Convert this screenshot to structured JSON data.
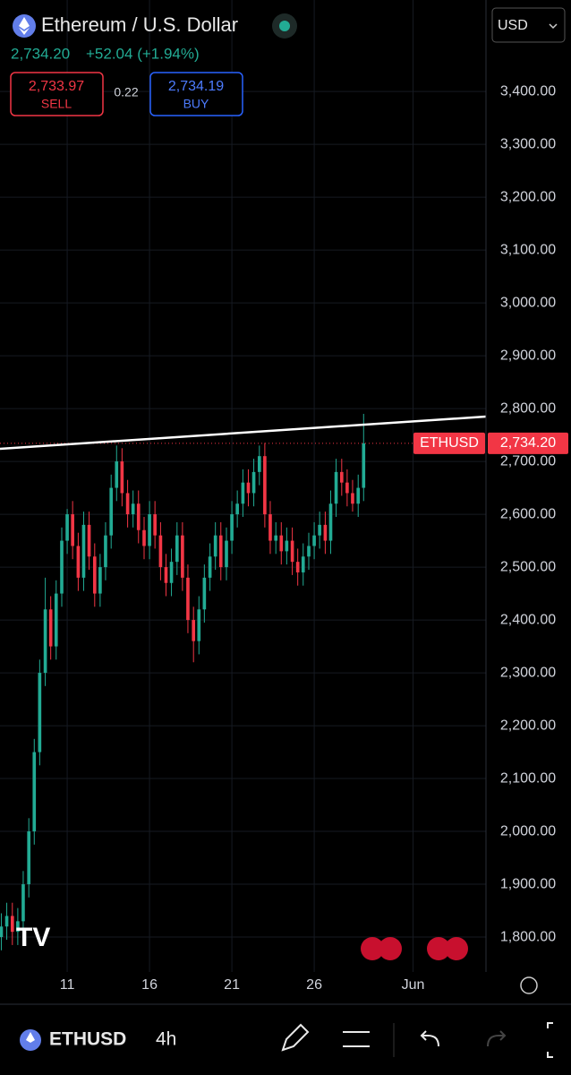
{
  "header": {
    "title": "Ethereum / U.S. Dollar",
    "price": "2,734.20",
    "change": "+52.04 (+1.94%)",
    "sell_price": "2,733.97",
    "sell_label": "SELL",
    "spread": "0.22",
    "buy_price": "2,734.19",
    "buy_label": "BUY",
    "currency": "USD"
  },
  "chart_data": {
    "type": "candlestick",
    "x": [
      7,
      7.33,
      7.67,
      8,
      8.33,
      8.67,
      9,
      9.33,
      9.67,
      10,
      10.33,
      10.67,
      11,
      11.33,
      11.67,
      12,
      12.33,
      12.67,
      13,
      13.33,
      13.67,
      14,
      14.33,
      14.67,
      15,
      15.33,
      15.67,
      16,
      16.33,
      16.67,
      17,
      17.33,
      17.67,
      18,
      18.33,
      18.67,
      19,
      19.33,
      19.67,
      20,
      20.33,
      20.67,
      21,
      21.33,
      21.67,
      22,
      22.33,
      22.67,
      23,
      23.33,
      23.67,
      24,
      24.33,
      24.67,
      25,
      25.33,
      25.67,
      26,
      26.33,
      26.67,
      27,
      27.33,
      27.67,
      28,
      28.33,
      28.67,
      29
    ],
    "open": [
      1800,
      1820,
      1840,
      1810,
      1830,
      1900,
      2000,
      2150,
      2300,
      2420,
      2350,
      2450,
      2550,
      2600,
      2540,
      2480,
      2580,
      2520,
      2450,
      2500,
      2560,
      2650,
      2700,
      2640,
      2600,
      2620,
      2570,
      2540,
      2600,
      2560,
      2500,
      2470,
      2510,
      2560,
      2480,
      2400,
      2360,
      2420,
      2480,
      2520,
      2560,
      2500,
      2550,
      2600,
      2620,
      2660,
      2640,
      2680,
      2710,
      2600,
      2550,
      2560,
      2530,
      2550,
      2510,
      2490,
      2520,
      2540,
      2560,
      2580,
      2550,
      2620,
      2680,
      2660,
      2640,
      2620,
      2650
    ],
    "high": [
      1845,
      1865,
      1865,
      1855,
      1925,
      2025,
      2175,
      2325,
      2480,
      2445,
      2475,
      2575,
      2610,
      2625,
      2565,
      2605,
      2605,
      2545,
      2525,
      2585,
      2675,
      2730,
      2725,
      2665,
      2645,
      2645,
      2595,
      2625,
      2625,
      2585,
      2525,
      2535,
      2585,
      2585,
      2505,
      2425,
      2445,
      2505,
      2545,
      2585,
      2585,
      2575,
      2625,
      2645,
      2685,
      2685,
      2705,
      2730,
      2735,
      2625,
      2585,
      2585,
      2575,
      2575,
      2535,
      2545,
      2565,
      2585,
      2605,
      2605,
      2645,
      2705,
      2705,
      2685,
      2665,
      2675,
      2790
    ],
    "low": [
      1775,
      1795,
      1785,
      1785,
      1805,
      1875,
      1975,
      2125,
      2275,
      2325,
      2325,
      2425,
      2525,
      2515,
      2455,
      2455,
      2495,
      2425,
      2425,
      2475,
      2535,
      2625,
      2615,
      2575,
      2575,
      2545,
      2515,
      2515,
      2535,
      2475,
      2445,
      2445,
      2485,
      2455,
      2375,
      2320,
      2335,
      2395,
      2455,
      2495,
      2475,
      2475,
      2525,
      2575,
      2595,
      2615,
      2615,
      2655,
      2575,
      2525,
      2525,
      2505,
      2505,
      2485,
      2465,
      2465,
      2495,
      2515,
      2535,
      2525,
      2525,
      2595,
      2635,
      2615,
      2605,
      2595,
      2625
    ],
    "close": [
      1820,
      1840,
      1810,
      1830,
      1900,
      2000,
      2150,
      2300,
      2420,
      2350,
      2450,
      2550,
      2600,
      2540,
      2480,
      2580,
      2520,
      2450,
      2500,
      2560,
      2650,
      2700,
      2640,
      2600,
      2620,
      2570,
      2540,
      2600,
      2560,
      2500,
      2470,
      2510,
      2560,
      2480,
      2400,
      2360,
      2420,
      2480,
      2520,
      2560,
      2500,
      2550,
      2600,
      2620,
      2660,
      2640,
      2680,
      2710,
      2600,
      2550,
      2560,
      2530,
      2550,
      2510,
      2490,
      2520,
      2540,
      2560,
      2580,
      2550,
      2620,
      2680,
      2660,
      2640,
      2620,
      2650,
      2734.2
    ],
    "up_color": "#22ab94",
    "down_color": "#f23645",
    "xlim": [
      6.92,
      36.43
    ],
    "ylim": [
      1734,
      3573
    ],
    "xticks": [
      11,
      16,
      21,
      26,
      {
        "value": 32,
        "label": "Jun"
      }
    ],
    "yticks": [
      {
        "value": 1800,
        "label": "1,800.00"
      },
      {
        "value": 1900,
        "label": "1,900.00"
      },
      {
        "value": 2000,
        "label": "2,000.00"
      },
      {
        "value": 2100,
        "label": "2,100.00"
      },
      {
        "value": 2200,
        "label": "2,200.00"
      },
      {
        "value": 2300,
        "label": "2,300.00"
      },
      {
        "value": 2400,
        "label": "2,400.00"
      },
      {
        "value": 2500,
        "label": "2,500.00"
      },
      {
        "value": 2600,
        "label": "2,600.00"
      },
      {
        "value": 2700,
        "label": "2,700.00"
      },
      {
        "value": 2800,
        "label": "2,800.00"
      },
      {
        "value": 2900,
        "label": "2,900.00"
      },
      {
        "value": 3000,
        "label": "3,000.00"
      },
      {
        "value": 3100,
        "label": "3,100.00"
      },
      {
        "value": 3200,
        "label": "3,200.00"
      },
      {
        "value": 3300,
        "label": "3,300.00"
      },
      {
        "value": 3400,
        "label": "3,400.00"
      }
    ],
    "grid": true,
    "symbol_label": "ETHUSD",
    "last_price_label": "2,734.20"
  },
  "toolbar": {
    "symbol": "ETHUSD",
    "interval": "4h"
  }
}
